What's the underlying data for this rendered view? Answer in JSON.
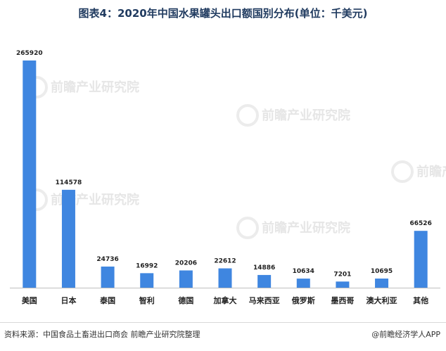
{
  "chart_data": {
    "type": "bar",
    "title": "图表4：2020年中国水果罐头出口额国别分布(单位：千美元)",
    "categories": [
      "美国",
      "日本",
      "泰国",
      "智利",
      "德国",
      "加拿大",
      "马来西亚",
      "俄罗斯",
      "墨西哥",
      "澳大利亚",
      "其他"
    ],
    "values": [
      265920,
      114578,
      24736,
      16992,
      20206,
      22612,
      14886,
      10634,
      7201,
      10695,
      66526
    ],
    "ylim": [
      0,
      270000
    ],
    "grid": false,
    "legend": "none",
    "bar_color": "#3f86e0",
    "axis_color": "#bfbfbf"
  },
  "footer": {
    "source": "资料来源：中国食品土畜进出口商会 前瞻产业研究院整理",
    "brand": "@前瞻经济学人APP"
  },
  "watermark": {
    "text": "前瞻产业研究院"
  }
}
